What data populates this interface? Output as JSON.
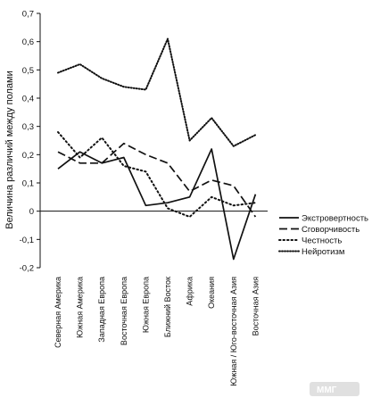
{
  "chart_data": {
    "type": "line",
    "title": "",
    "ylabel": "Величина различий между полами",
    "xlabel": "",
    "ylim": [
      -0.2,
      0.7
    ],
    "yticks": [
      -0.2,
      -0.1,
      0,
      0.1,
      0.2,
      0.3,
      0.4,
      0.5,
      0.6,
      0.7
    ],
    "ytick_labels": [
      "-0,2",
      "-0,1",
      "0",
      "0,1",
      "0,2",
      "0,3",
      "0,4",
      "0,5",
      "0,6",
      "0,7"
    ],
    "grid": false,
    "legend_position": "right",
    "categories": [
      "Северная Америка",
      "Южная Америка",
      "Западная Европа",
      "Восточная Европа",
      "Южная Европа",
      "Ближний Восток",
      "Африка",
      "Океания",
      "Южная / Юго-восточная Азия",
      "Восточная Азия"
    ],
    "series": [
      {
        "name": "Экстровертность",
        "style": "solid",
        "values": [
          0.15,
          0.21,
          0.17,
          0.19,
          0.02,
          0.03,
          0.05,
          0.22,
          -0.17,
          0.06
        ]
      },
      {
        "name": "Сговорчивость",
        "style": "dash",
        "values": [
          0.21,
          0.17,
          0.17,
          0.24,
          0.2,
          0.17,
          0.07,
          0.11,
          0.09,
          -0.02
        ]
      },
      {
        "name": "Честность",
        "style": "dot",
        "values": [
          0.28,
          0.19,
          0.26,
          0.16,
          0.14,
          0.01,
          -0.02,
          0.05,
          0.02,
          0.03
        ]
      },
      {
        "name": "Нейротизм",
        "style": "densedot",
        "values": [
          0.49,
          0.52,
          0.47,
          0.44,
          0.43,
          0.61,
          0.25,
          0.33,
          0.23,
          0.27
        ]
      }
    ]
  },
  "watermark": {
    "text": "ММГ"
  }
}
